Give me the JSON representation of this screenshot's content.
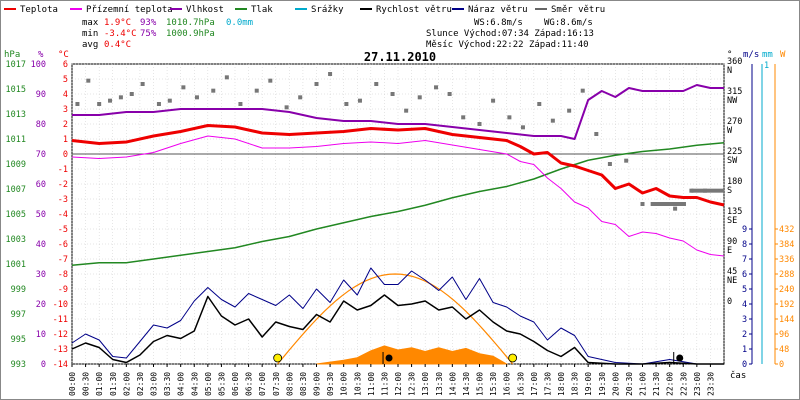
{
  "chart_data": {
    "type": "line",
    "title": "27.11.2010",
    "legend": [
      {
        "label": "Teplota",
        "color": "#ee0000"
      },
      {
        "label": "Přízemní teplota",
        "color": "#ee00ee"
      },
      {
        "label": "Vlhkost",
        "color": "#8800aa"
      },
      {
        "label": "Tlak",
        "color": "#228822"
      },
      {
        "label": "Srážky",
        "color": "#00aacc"
      },
      {
        "label": "Rychlost větru",
        "color": "#000000"
      },
      {
        "label": "Náraz větru",
        "color": "#000088"
      },
      {
        "label": "Směr větru",
        "color": "#666666"
      }
    ],
    "stats": {
      "max": {
        "label": "max",
        "temp": "1.9°C",
        "hum": "93%",
        "press": "1010.7hPa",
        "rain": "0.0mm"
      },
      "min": {
        "label": "min",
        "temp": "-3.4°C",
        "hum": "75%",
        "press": "1000.9hPa"
      },
      "avg": {
        "label": "avg",
        "temp": "0.4°C"
      }
    },
    "info": {
      "ws": "WS:6.8m/s",
      "wg": "WG:8.6m/s",
      "sun": "Slunce Východ:07:34  Západ:16:13",
      "moon": "Měsíc  Východ:22:22  Západ:11:40"
    },
    "axes": {
      "hpa_label": "hPa",
      "pct_label": "%",
      "c_label": "°C",
      "deg_label": "°",
      "ms_label": "m/s",
      "mm_label": "mm",
      "w_label": "W",
      "xlabel": "čas",
      "hpa_ticks": [
        "1017",
        "1015",
        "1013",
        "1011",
        "1009",
        "1007",
        "1005",
        "1003",
        "1001",
        "999",
        "997",
        "995",
        "993"
      ],
      "pct_ticks": [
        "100",
        "90",
        "80",
        "70",
        "60",
        "50",
        "40",
        "30",
        "20",
        "10",
        "0"
      ],
      "c_ticks": [
        "6",
        "5",
        "4",
        "3",
        "2",
        "1",
        "0",
        "-1",
        "-2",
        "-3",
        "-4",
        "-5",
        "-6",
        "-7",
        "-8",
        "-9",
        "-10",
        "-11",
        "-12",
        "-13",
        "-14"
      ],
      "dir_ticks": [
        {
          "v": 360,
          "num": "360",
          "dir": "N"
        },
        {
          "v": 315,
          "num": "315",
          "dir": "NW"
        },
        {
          "v": 270,
          "num": "270",
          "dir": "W"
        },
        {
          "v": 225,
          "num": "225",
          "dir": "SW"
        },
        {
          "v": 180,
          "num": "180",
          "dir": "S"
        },
        {
          "v": 135,
          "num": "135",
          "dir": "SE"
        },
        {
          "v": 90,
          "num": "90",
          "dir": "E"
        },
        {
          "v": 45,
          "num": "45",
          "dir": "NE"
        },
        {
          "v": 0,
          "num": "0",
          "dir": ""
        }
      ],
      "ms_ticks": [
        "9",
        "8",
        "7",
        "6",
        "5",
        "4",
        "3",
        "2",
        "1",
        "0"
      ],
      "ms_top": "1",
      "w_ticks": [
        "432",
        "384",
        "336",
        "288",
        "240",
        "192",
        "144",
        "96",
        "48",
        "0"
      ],
      "x_ticks": [
        "00:00",
        "00:30",
        "01:00",
        "01:30",
        "02:00",
        "02:30",
        "03:00",
        "03:30",
        "04:00",
        "04:30",
        "05:00",
        "05:30",
        "06:00",
        "06:30",
        "07:00",
        "07:30",
        "08:00",
        "08:30",
        "09:00",
        "09:30",
        "10:00",
        "10:30",
        "11:00",
        "11:30",
        "12:00",
        "12:30",
        "13:00",
        "13:30",
        "14:00",
        "14:30",
        "15:00",
        "15:30",
        "16:00",
        "16:30",
        "17:00",
        "17:30",
        "18:00",
        "18:30",
        "19:00",
        "19:30",
        "20:00",
        "20:30",
        "21:00",
        "21:30",
        "22:00",
        "22:30",
        "23:00",
        "23:30"
      ]
    },
    "series": [
      {
        "name": "Teplota",
        "unit": "°C",
        "x": [
          0,
          1,
          2,
          3,
          4,
          5,
          6,
          7,
          8,
          9,
          10,
          11,
          12,
          13,
          14,
          15,
          16,
          16.5,
          17,
          17.5,
          18,
          18.5,
          19,
          19.5,
          20,
          20.5,
          21,
          21.5,
          22,
          22.5,
          23,
          23.5,
          24
        ],
        "y": [
          0.9,
          0.7,
          0.8,
          1.2,
          1.5,
          1.9,
          1.8,
          1.4,
          1.3,
          1.4,
          1.5,
          1.7,
          1.6,
          1.7,
          1.3,
          1.1,
          0.9,
          0.5,
          0.0,
          0.1,
          -0.6,
          -0.8,
          -1.1,
          -1.4,
          -2.3,
          -2.0,
          -2.6,
          -2.3,
          -2.8,
          -2.9,
          -2.9,
          -3.2,
          -3.4
        ]
      },
      {
        "name": "Přízemní teplota",
        "unit": "°C",
        "x": [
          0,
          1,
          2,
          3,
          4,
          5,
          6,
          7,
          8,
          9,
          10,
          11,
          12,
          13,
          14,
          15,
          16,
          16.5,
          17,
          17.5,
          18,
          18.5,
          19,
          19.5,
          20,
          20.5,
          21,
          21.5,
          22,
          22.5,
          23,
          23.5,
          24
        ],
        "y": [
          -0.2,
          -0.3,
          -0.2,
          0.1,
          0.7,
          1.2,
          1.0,
          0.4,
          0.4,
          0.5,
          0.7,
          0.8,
          0.7,
          0.9,
          0.6,
          0.3,
          0.0,
          -0.5,
          -0.7,
          -1.6,
          -2.3,
          -3.2,
          -3.6,
          -4.5,
          -4.7,
          -5.5,
          -5.2,
          -5.3,
          -5.6,
          -5.8,
          -6.4,
          -6.7,
          -6.8
        ]
      },
      {
        "name": "Vlhkost",
        "unit": "%",
        "x": [
          0,
          1,
          2,
          3,
          4,
          5,
          6,
          7,
          8,
          9,
          10,
          11,
          12,
          13,
          14,
          15,
          16,
          17,
          18,
          18.5,
          19,
          19.5,
          20,
          20.5,
          21,
          21.5,
          22,
          22.5,
          23,
          23.5,
          24
        ],
        "y": [
          83,
          83,
          84,
          84,
          85,
          85,
          85,
          85,
          84,
          82,
          81,
          81,
          80,
          80,
          79,
          78,
          77,
          76,
          76,
          75,
          88,
          91,
          89,
          92,
          91,
          91,
          91,
          91,
          93,
          92,
          92
        ]
      },
      {
        "name": "Tlak",
        "unit": "hPa",
        "x": [
          0,
          1,
          2,
          3,
          4,
          5,
          6,
          7,
          8,
          9,
          10,
          11,
          12,
          13,
          14,
          15,
          16,
          17,
          18,
          19,
          20,
          21,
          22,
          23,
          24
        ],
        "y": [
          1000.9,
          1001.1,
          1001.1,
          1001.4,
          1001.7,
          1002.0,
          1002.3,
          1002.8,
          1003.2,
          1003.8,
          1004.3,
          1004.8,
          1005.2,
          1005.7,
          1006.3,
          1006.8,
          1007.2,
          1007.8,
          1008.6,
          1009.3,
          1009.7,
          1010.0,
          1010.2,
          1010.5,
          1010.7
        ]
      },
      {
        "name": "Rychlost větru",
        "unit": "m/s",
        "x": [
          0,
          0.5,
          1,
          1.5,
          2,
          2.5,
          3,
          3.5,
          4,
          4.5,
          5,
          5.5,
          6,
          6.5,
          7,
          7.5,
          8,
          8.5,
          9,
          9.5,
          10,
          10.5,
          11,
          11.5,
          12,
          12.5,
          13,
          13.5,
          14,
          14.5,
          15,
          15.5,
          16,
          16.5,
          17,
          17.5,
          18,
          18.5,
          19,
          20,
          21,
          22,
          23,
          24
        ],
        "y": [
          1.0,
          1.4,
          1.1,
          0.3,
          0.1,
          0.6,
          1.5,
          1.9,
          1.7,
          2.2,
          4.5,
          3.2,
          2.6,
          3.0,
          1.8,
          2.8,
          2.5,
          2.3,
          3.3,
          2.8,
          4.2,
          3.6,
          3.9,
          4.6,
          3.9,
          4.0,
          4.2,
          3.6,
          3.8,
          3.0,
          3.6,
          2.8,
          2.2,
          2.0,
          1.5,
          0.9,
          0.5,
          1.1,
          0.1,
          0.0,
          0.0,
          0.1,
          0.0,
          0.0
        ]
      },
      {
        "name": "Náraz větru",
        "unit": "m/s",
        "x": [
          0,
          0.5,
          1,
          1.5,
          2,
          2.5,
          3,
          3.5,
          4,
          4.5,
          5,
          5.5,
          6,
          6.5,
          7,
          7.5,
          8,
          8.5,
          9,
          9.5,
          10,
          10.5,
          11,
          11.5,
          12,
          12.5,
          13,
          13.5,
          14,
          14.5,
          15,
          15.5,
          16,
          16.5,
          17,
          17.5,
          18,
          18.5,
          19,
          20,
          21,
          22,
          23,
          24
        ],
        "y": [
          1.4,
          2.0,
          1.6,
          0.5,
          0.4,
          1.5,
          2.6,
          2.4,
          2.9,
          4.2,
          5.1,
          4.3,
          3.8,
          4.7,
          4.3,
          3.9,
          4.6,
          3.7,
          5.0,
          4.1,
          5.6,
          4.6,
          6.4,
          5.3,
          5.3,
          6.2,
          5.6,
          4.9,
          5.8,
          4.3,
          5.7,
          4.1,
          3.8,
          3.2,
          2.8,
          1.6,
          2.4,
          1.9,
          0.5,
          0.1,
          0.0,
          0.3,
          0.0,
          0.0
        ]
      },
      {
        "name": "Směr větru",
        "unit": "°",
        "x": [
          0.2,
          0.6,
          1.0,
          1.4,
          1.8,
          2.2,
          2.6,
          3.2,
          3.6,
          4.1,
          4.6,
          5.2,
          5.7,
          6.2,
          6.8,
          7.3,
          7.9,
          8.4,
          9.0,
          9.5,
          10.1,
          10.6,
          11.2,
          11.8,
          12.3,
          12.8,
          13.4,
          13.9,
          14.4,
          15.0,
          15.5,
          16.1,
          16.6,
          17.2,
          17.7,
          18.3,
          18.8,
          19.3,
          19.8,
          20.4,
          21.0,
          21.6,
          22.2,
          22.8,
          23.3
        ],
        "y": [
          300,
          335,
          300,
          305,
          310,
          315,
          330,
          300,
          305,
          325,
          310,
          320,
          340,
          300,
          320,
          335,
          295,
          310,
          330,
          345,
          300,
          305,
          330,
          315,
          290,
          310,
          325,
          315,
          280,
          270,
          305,
          280,
          265,
          300,
          275,
          290,
          320,
          255,
          210,
          215,
          150,
          150,
          143,
          170,
          170
        ]
      }
    ],
    "irradiance": {
      "name": "Sluneční záření",
      "unit": "W",
      "x": [
        9,
        10,
        10.5,
        11,
        11.5,
        12,
        12.5,
        13,
        13.5,
        14,
        14.5,
        15,
        15.5,
        16
      ],
      "y": [
        0,
        12,
        20,
        42,
        58,
        45,
        52,
        40,
        52,
        40,
        50,
        33,
        25,
        0
      ]
    },
    "sun_elevation": {
      "rise": 7.57,
      "set": 16.22,
      "peak": "-8"
    },
    "markers": [
      {
        "type": "sunrise",
        "x": 7.57,
        "color": "#ffee00"
      },
      {
        "type": "sunset",
        "x": 16.22,
        "color": "#ffee00"
      },
      {
        "type": "moonset",
        "x": 11.67,
        "color": "#000000"
      },
      {
        "type": "moonrise",
        "x": 22.37,
        "color": "#000000"
      }
    ]
  }
}
